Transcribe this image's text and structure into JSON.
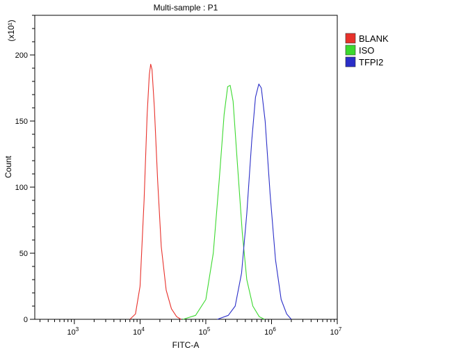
{
  "chart_data": {
    "type": "line",
    "title": "Multi-sample : P1",
    "xlabel": "FITC-A",
    "ylabel": "Count",
    "y_scale_label": "(x10¹)",
    "x_scale": "log",
    "xlim": [
      250,
      10000000
    ],
    "ylim": [
      0,
      230
    ],
    "x_ticks": [
      {
        "value": 1000,
        "base": "10",
        "exp": "3"
      },
      {
        "value": 10000,
        "base": "10",
        "exp": "4"
      },
      {
        "value": 100000,
        "base": "10",
        "exp": "5"
      },
      {
        "value": 1000000,
        "base": "10",
        "exp": "6"
      },
      {
        "value": 10000000,
        "base": "10",
        "exp": "7"
      }
    ],
    "y_ticks": [
      0,
      50,
      100,
      150,
      200
    ],
    "grid": false,
    "legend_position": "right",
    "series": [
      {
        "name": "BLANK",
        "color": "#e8312b",
        "points": [
          [
            7000,
            0
          ],
          [
            8500,
            4
          ],
          [
            10000,
            25
          ],
          [
            11500,
            90
          ],
          [
            12800,
            155
          ],
          [
            13800,
            185
          ],
          [
            14500,
            193
          ],
          [
            15200,
            189
          ],
          [
            16500,
            160
          ],
          [
            18500,
            105
          ],
          [
            21000,
            55
          ],
          [
            25000,
            22
          ],
          [
            30000,
            8
          ],
          [
            36000,
            2
          ],
          [
            42000,
            0
          ]
        ]
      },
      {
        "name": "ISO",
        "color": "#3bd92e",
        "points": [
          [
            45000,
            0
          ],
          [
            70000,
            3
          ],
          [
            100000,
            15
          ],
          [
            130000,
            50
          ],
          [
            160000,
            105
          ],
          [
            190000,
            155
          ],
          [
            215000,
            176
          ],
          [
            235000,
            177
          ],
          [
            260000,
            165
          ],
          [
            300000,
            120
          ],
          [
            360000,
            65
          ],
          [
            420000,
            30
          ],
          [
            520000,
            10
          ],
          [
            650000,
            2
          ],
          [
            780000,
            0
          ]
        ]
      },
      {
        "name": "TFPI2",
        "color": "#2a2ec8",
        "points": [
          [
            150000,
            0
          ],
          [
            220000,
            3
          ],
          [
            280000,
            10
          ],
          [
            350000,
            35
          ],
          [
            420000,
            80
          ],
          [
            500000,
            135
          ],
          [
            570000,
            168
          ],
          [
            640000,
            178
          ],
          [
            700000,
            175
          ],
          [
            800000,
            150
          ],
          [
            950000,
            95
          ],
          [
            1150000,
            45
          ],
          [
            1400000,
            15
          ],
          [
            1700000,
            4
          ],
          [
            2000000,
            0
          ]
        ]
      }
    ]
  }
}
